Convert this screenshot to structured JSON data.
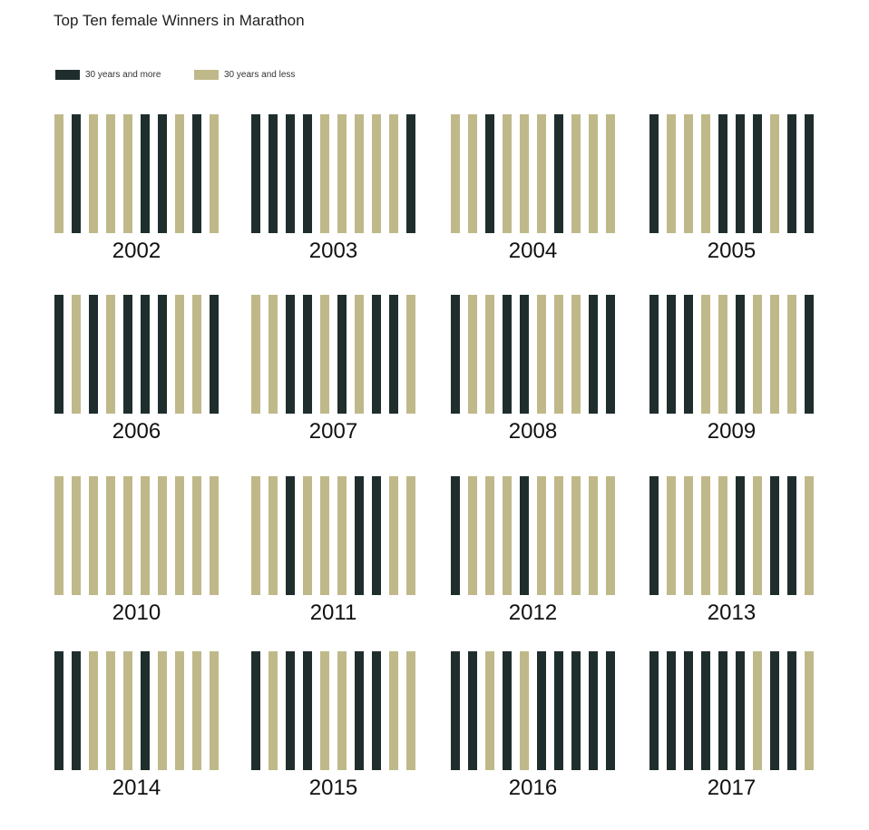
{
  "colors": {
    "older": "#1f2e2d",
    "younger": "#bfb98a",
    "background": "#ffffff"
  },
  "chart_data": {
    "type": "bar",
    "title": "Top Ten female Winners in Marathon",
    "legend": {
      "placement": "top-left",
      "entries": [
        {
          "key": "older",
          "label": "30 years and more"
        },
        {
          "key": "younger",
          "label": "30 years and less"
        }
      ]
    },
    "grid": false,
    "panels": [
      {
        "year": "2002",
        "winners": [
          "younger",
          "older",
          "younger",
          "younger",
          "younger",
          "older",
          "older",
          "younger",
          "older",
          "younger"
        ]
      },
      {
        "year": "2003",
        "winners": [
          "older",
          "older",
          "older",
          "older",
          "younger",
          "younger",
          "younger",
          "younger",
          "younger",
          "older"
        ]
      },
      {
        "year": "2004",
        "winners": [
          "younger",
          "younger",
          "older",
          "younger",
          "younger",
          "younger",
          "older",
          "younger",
          "younger",
          "younger"
        ]
      },
      {
        "year": "2005",
        "winners": [
          "older",
          "younger",
          "younger",
          "younger",
          "older",
          "older",
          "older",
          "younger",
          "older",
          "older"
        ]
      },
      {
        "year": "2006",
        "winners": [
          "older",
          "younger",
          "older",
          "younger",
          "older",
          "older",
          "older",
          "younger",
          "younger",
          "older"
        ]
      },
      {
        "year": "2007",
        "winners": [
          "younger",
          "younger",
          "older",
          "older",
          "younger",
          "older",
          "younger",
          "older",
          "older",
          "younger"
        ]
      },
      {
        "year": "2008",
        "winners": [
          "older",
          "younger",
          "younger",
          "older",
          "older",
          "younger",
          "younger",
          "younger",
          "older",
          "older"
        ]
      },
      {
        "year": "2009",
        "winners": [
          "older",
          "older",
          "older",
          "younger",
          "younger",
          "older",
          "younger",
          "younger",
          "younger",
          "older"
        ]
      },
      {
        "year": "2010",
        "winners": [
          "younger",
          "younger",
          "younger",
          "younger",
          "younger",
          "younger",
          "younger",
          "younger",
          "younger",
          "younger"
        ]
      },
      {
        "year": "2011",
        "winners": [
          "younger",
          "younger",
          "older",
          "younger",
          "younger",
          "younger",
          "older",
          "older",
          "younger",
          "younger"
        ]
      },
      {
        "year": "2012",
        "winners": [
          "older",
          "younger",
          "younger",
          "younger",
          "older",
          "younger",
          "younger",
          "younger",
          "younger",
          "younger"
        ]
      },
      {
        "year": "2013",
        "winners": [
          "older",
          "younger",
          "younger",
          "younger",
          "younger",
          "older",
          "younger",
          "older",
          "older",
          "younger"
        ]
      },
      {
        "year": "2014",
        "winners": [
          "older",
          "older",
          "younger",
          "younger",
          "younger",
          "older",
          "younger",
          "younger",
          "younger",
          "younger"
        ]
      },
      {
        "year": "2015",
        "winners": [
          "older",
          "younger",
          "older",
          "older",
          "younger",
          "younger",
          "older",
          "older",
          "younger",
          "younger"
        ]
      },
      {
        "year": "2016",
        "winners": [
          "older",
          "older",
          "younger",
          "older",
          "younger",
          "older",
          "older",
          "older",
          "older",
          "older"
        ]
      },
      {
        "year": "2017",
        "winners": [
          "older",
          "older",
          "older",
          "older",
          "older",
          "older",
          "younger",
          "older",
          "older",
          "younger"
        ]
      }
    ]
  }
}
